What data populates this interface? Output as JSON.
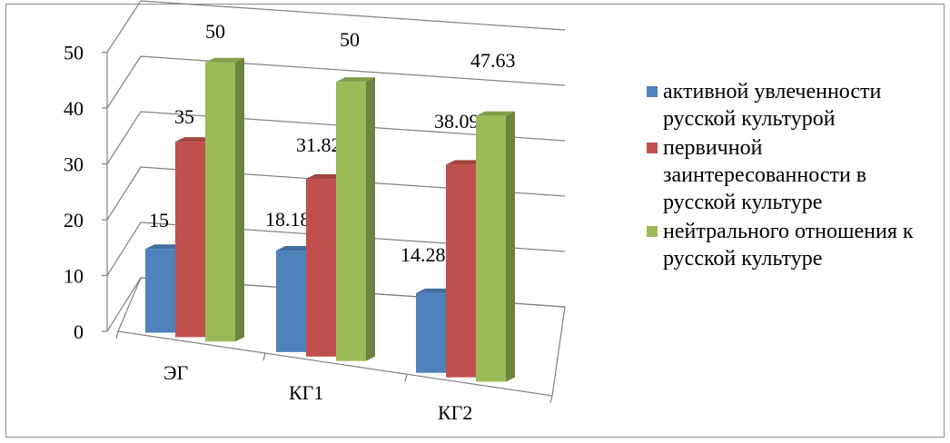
{
  "chart_data": {
    "type": "bar",
    "subtype": "3d-clustered-column",
    "categories": [
      "ЭГ",
      "КГ1",
      "КГ2"
    ],
    "series": [
      {
        "name": "активной увлеченности русской культурой",
        "color": "#4f81bd",
        "values": [
          15,
          18.18,
          14.28
        ]
      },
      {
        "name": "первичной заинтересованности в русской культуре",
        "color": "#c0504d",
        "values": [
          35,
          31.82,
          38.09
        ]
      },
      {
        "name": "нейтрального отношения к русской культуре",
        "color": "#9bbb59",
        "values": [
          50,
          50,
          47.63
        ]
      }
    ],
    "value_labels": [
      [
        "15",
        "18.18",
        "14.28"
      ],
      [
        "35",
        "31.82",
        "38.09"
      ],
      [
        "50",
        "50",
        "47.63"
      ]
    ],
    "y_ticks": [
      "0",
      "10",
      "20",
      "30",
      "40",
      "50"
    ],
    "ylim": [
      0,
      50
    ],
    "grid": true,
    "legend_position": "right"
  }
}
